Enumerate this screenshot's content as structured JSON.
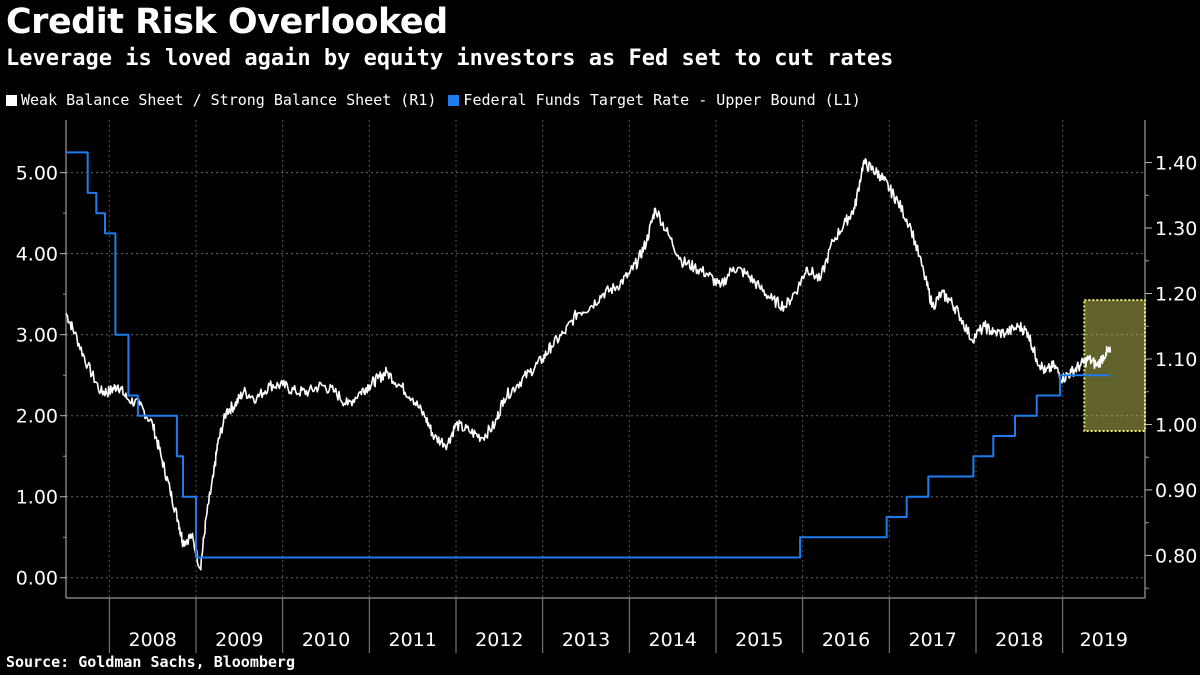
{
  "header": {
    "title": "Credit Risk Overlooked",
    "subtitle": "Leverage is loved again by equity investors as Fed set to cut rates"
  },
  "legend": {
    "items": [
      {
        "label": "Weak Balance Sheet / Strong Balance Sheet (R1)",
        "color": "#ffffff"
      },
      {
        "label": "Federal Funds Target Rate - Upper Bound  (L1)",
        "color": "#1e7cf0"
      }
    ]
  },
  "footer": {
    "source": "Source: Goldman Sachs, Bloomberg"
  },
  "chart_data": {
    "type": "line",
    "grid": true,
    "xlim": [
      2007.5,
      2019.95
    ],
    "x_ticks": [
      "2008",
      "2009",
      "2010",
      "2011",
      "2012",
      "2013",
      "2014",
      "2015",
      "2016",
      "2017",
      "2018",
      "2019"
    ],
    "left_axis": {
      "ticks": [
        "0.00",
        "1.00",
        "2.00",
        "3.00",
        "4.00",
        "5.00"
      ],
      "tick_values": [
        0,
        1,
        2,
        3,
        4,
        5
      ],
      "ylim": [
        -0.25,
        5.65
      ]
    },
    "right_axis": {
      "ticks": [
        "0.80",
        "0.90",
        "1.00",
        "1.10",
        "1.20",
        "1.30",
        "1.40"
      ],
      "tick_values": [
        0.8,
        0.9,
        1.0,
        1.1,
        1.2,
        1.3,
        1.4
      ],
      "ylim": [
        0.735,
        1.465
      ]
    },
    "highlight": {
      "x": [
        2019.25,
        2019.95
      ],
      "y_right": [
        0.99,
        1.19
      ],
      "color": "#d8d860"
    },
    "series": [
      {
        "name": "Weak Balance Sheet / Strong Balance Sheet (R1)",
        "axis": "right",
        "color": "#ffffff",
        "x": [
          2007.5,
          2007.6,
          2007.75,
          2007.9,
          2008.0,
          2008.1,
          2008.2,
          2008.35,
          2008.5,
          2008.6,
          2008.7,
          2008.8,
          2008.85,
          2008.95,
          2009.05,
          2009.12,
          2009.2,
          2009.25,
          2009.35,
          2009.45,
          2009.55,
          2009.7,
          2009.85,
          2010.0,
          2010.15,
          2010.3,
          2010.45,
          2010.6,
          2010.75,
          2010.9,
          2011.0,
          2011.1,
          2011.2,
          2011.35,
          2011.5,
          2011.65,
          2011.75,
          2011.9,
          2012.0,
          2012.15,
          2012.3,
          2012.45,
          2012.55,
          2012.7,
          2012.85,
          2013.0,
          2013.1,
          2013.25,
          2013.4,
          2013.55,
          2013.7,
          2013.85,
          2014.0,
          2014.1,
          2014.2,
          2014.3,
          2014.45,
          2014.6,
          2014.75,
          2014.9,
          2015.05,
          2015.2,
          2015.35,
          2015.5,
          2015.65,
          2015.8,
          2015.95,
          2016.05,
          2016.2,
          2016.35,
          2016.5,
          2016.6,
          2016.7,
          2016.8,
          2016.9,
          2017.0,
          2017.1,
          2017.25,
          2017.4,
          2017.5,
          2017.6,
          2017.7,
          2017.8,
          2017.95,
          2018.1,
          2018.2,
          2018.35,
          2018.5,
          2018.6,
          2018.7,
          2018.8,
          2018.9,
          2019.0,
          2019.1,
          2019.2,
          2019.3,
          2019.4,
          2019.5,
          2019.55
        ],
        "values": [
          1.17,
          1.14,
          1.09,
          1.05,
          1.05,
          1.06,
          1.04,
          1.03,
          1.0,
          0.95,
          0.9,
          0.85,
          0.82,
          0.83,
          0.78,
          0.86,
          0.92,
          0.97,
          1.02,
          1.03,
          1.05,
          1.04,
          1.06,
          1.06,
          1.05,
          1.05,
          1.06,
          1.05,
          1.03,
          1.05,
          1.06,
          1.07,
          1.08,
          1.06,
          1.04,
          1.01,
          0.98,
          0.97,
          1.0,
          0.99,
          0.98,
          1.0,
          1.04,
          1.06,
          1.08,
          1.1,
          1.12,
          1.14,
          1.17,
          1.18,
          1.2,
          1.21,
          1.23,
          1.25,
          1.28,
          1.33,
          1.29,
          1.25,
          1.24,
          1.23,
          1.21,
          1.24,
          1.23,
          1.21,
          1.19,
          1.18,
          1.21,
          1.24,
          1.22,
          1.28,
          1.31,
          1.33,
          1.4,
          1.39,
          1.38,
          1.36,
          1.34,
          1.3,
          1.23,
          1.18,
          1.2,
          1.19,
          1.17,
          1.13,
          1.15,
          1.14,
          1.14,
          1.15,
          1.14,
          1.1,
          1.08,
          1.09,
          1.07,
          1.08,
          1.09,
          1.1,
          1.09,
          1.11,
          1.11
        ]
      },
      {
        "name": "Federal Funds Target Rate - Upper Bound  (L1)",
        "axis": "left",
        "color": "#1e7cf0",
        "step": true,
        "x": [
          2007.5,
          2007.65,
          2007.75,
          2007.85,
          2007.95,
          2008.07,
          2008.22,
          2008.33,
          2008.78,
          2008.85,
          2008.93,
          2009.0,
          2015.97,
          2016.97,
          2017.2,
          2017.45,
          2017.97,
          2018.2,
          2018.45,
          2018.7,
          2018.97,
          2019.55
        ],
        "values": [
          5.25,
          5.25,
          4.75,
          4.5,
          4.25,
          3.0,
          2.25,
          2.0,
          1.5,
          1.0,
          1.0,
          0.25,
          0.5,
          0.75,
          1.0,
          1.25,
          1.5,
          1.75,
          2.0,
          2.25,
          2.5,
          2.5
        ]
      }
    ]
  }
}
